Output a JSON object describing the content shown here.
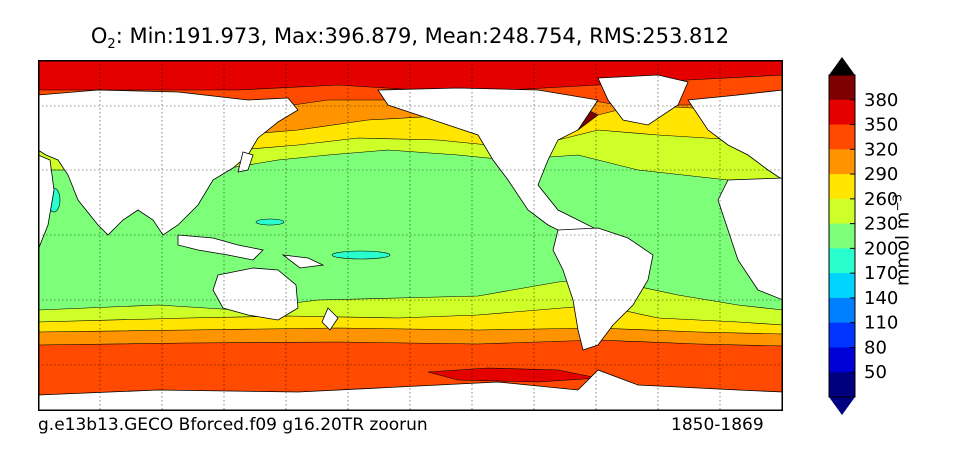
{
  "title": {
    "variable": "O",
    "subscript": "2",
    "stats": ": Min:191.973, Max:396.879, Mean:248.754, RMS:253.812"
  },
  "footer": {
    "run_name": "g.e13b13.GECO Bforced.f09 g16.20TR zoorun",
    "period": "1850-1869"
  },
  "colorbar": {
    "unit_label": "mmol m",
    "unit_exponent": "−3",
    "ticks": [
      "50",
      "80",
      "110",
      "140",
      "170",
      "200",
      "230",
      "260",
      "290",
      "320",
      "350",
      "380"
    ],
    "colors": [
      "#00007f",
      "#0000d8",
      "#0034ff",
      "#0080ff",
      "#00d4ff",
      "#29ffce",
      "#7dff7a",
      "#ceff29",
      "#ffe500",
      "#ff9400",
      "#ff4a00",
      "#e50000",
      "#7f0000"
    ],
    "under_color": "#000080",
    "over_color": "#000000"
  },
  "map": {
    "projection": "cylindrical, Pacific-centered",
    "land_color": "#ffffff",
    "gridlines": "dotted",
    "bands": [
      {
        "level": "380",
        "color": "#e50000"
      },
      {
        "level": "350",
        "color": "#ff4a00"
      },
      {
        "level": "320",
        "color": "#ff9400"
      },
      {
        "level": "290",
        "color": "#ffe500"
      },
      {
        "level": "260",
        "color": "#ceff29"
      },
      {
        "level": "230",
        "color": "#7dff7a"
      },
      {
        "level": "200",
        "color": "#29ffce"
      }
    ]
  }
}
